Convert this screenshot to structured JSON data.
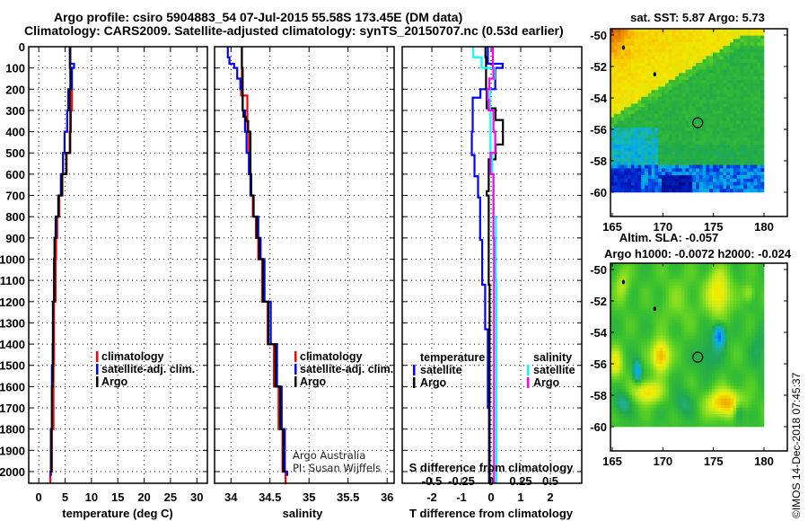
{
  "title": {
    "line1": "Argo profile: csiro 5904883_54 07-Jul-2015 55.58S 173.45E (DM data)",
    "line2": "Climatology: CARS2009. Satellite-adjusted climatology: synTS_20150707.nc (0.53d earlier)"
  },
  "depth_ticks": [
    0,
    100,
    200,
    300,
    400,
    500,
    600,
    700,
    800,
    900,
    1000,
    1100,
    1200,
    1300,
    1400,
    1500,
    1600,
    1700,
    1800,
    1900,
    2000
  ],
  "credit": {
    "line1": "Argo Australia",
    "line2": "PI: Susan Wijffels"
  },
  "timestamp": "©IMOS 14-Dec-2018 07:45:37",
  "chart_data": [
    {
      "type": "line",
      "xlabel": "temperature (deg C)",
      "ylabel": "depth",
      "xlim": [
        -1.9,
        32
      ],
      "ylim": [
        0,
        2055
      ],
      "y_reversed": true,
      "grid": true,
      "xticks": [
        0,
        5,
        10,
        15,
        20,
        25,
        30
      ],
      "legend": [
        "climatology",
        "satellite-adj. clim.",
        "Argo"
      ],
      "series": [
        {
          "name": "climatology",
          "color": "#ff0000",
          "depth": [
            0,
            100,
            200,
            300,
            400,
            500,
            600,
            700,
            800,
            900,
            1000,
            1200,
            1500,
            1800,
            2000,
            2055
          ],
          "values": [
            6.0,
            6.1,
            6.3,
            6.1,
            6.0,
            5.3,
            4.5,
            3.9,
            3.5,
            3.3,
            3.2,
            2.9,
            2.8,
            2.5,
            2.2,
            2.2
          ]
        },
        {
          "name": "satellite-adj. clim.",
          "color": "#0000ff",
          "depth": [
            0,
            80,
            100,
            200,
            300,
            400,
            500,
            600,
            700,
            800,
            900,
            1000,
            1200,
            1500,
            1800,
            2020
          ],
          "values": [
            6.0,
            6.7,
            6.3,
            5.6,
            5.4,
            4.9,
            4.6,
            4.2,
            3.7,
            3.3,
            3.0,
            2.9,
            2.7,
            2.5,
            2.3,
            2.3
          ]
        },
        {
          "name": "Argo",
          "color": "#000000",
          "depth": [
            0,
            100,
            200,
            300,
            400,
            500,
            600,
            700,
            800,
            900,
            1000,
            1200,
            1400,
            1600,
            1800,
            2000
          ],
          "values": [
            5.9,
            6.0,
            5.9,
            6.0,
            5.9,
            5.2,
            4.4,
            3.75,
            3.2,
            3.0,
            2.95,
            2.7,
            2.65,
            2.5,
            2.4,
            2.3
          ]
        }
      ]
    },
    {
      "type": "line",
      "xlabel": "salinity",
      "ylabel": "depth",
      "xlim": [
        33.79,
        36.09
      ],
      "ylim": [
        0,
        2055
      ],
      "y_reversed": true,
      "grid": true,
      "xticks": [
        34,
        34.5,
        35,
        35.5,
        36
      ],
      "legend": [
        "climatology",
        "satellite-adj. clim.",
        "Argo"
      ],
      "series": [
        {
          "name": "climatology",
          "color": "#ff0000",
          "depth": [
            0,
            150,
            230,
            300,
            400,
            500,
            600,
            700,
            800,
            900,
            1000,
            1200,
            1400,
            1600,
            1800,
            2000,
            2055
          ],
          "values": [
            34.14,
            34.13,
            34.21,
            34.21,
            34.23,
            34.24,
            34.25,
            34.28,
            34.32,
            34.35,
            34.4,
            34.47,
            34.55,
            34.61,
            34.66,
            34.7,
            34.71
          ]
        },
        {
          "name": "satellite-adj. clim.",
          "color": "#0000ff",
          "depth": [
            0,
            50,
            80,
            100,
            150,
            200,
            300,
            400,
            500,
            600,
            700,
            800,
            900,
            1000,
            1200,
            1400,
            1600,
            1800,
            2000,
            2020
          ],
          "values": [
            33.96,
            33.98,
            34.04,
            34.08,
            34.12,
            34.15,
            34.18,
            34.2,
            34.23,
            34.25,
            34.29,
            34.35,
            34.38,
            34.43,
            34.51,
            34.59,
            34.65,
            34.69,
            34.72,
            34.72
          ]
        },
        {
          "name": "Argo",
          "color": "#000000",
          "depth": [
            0,
            100,
            300,
            330,
            350,
            400,
            500,
            600,
            700,
            800,
            900,
            1000,
            1200,
            1400,
            1600,
            1800,
            2000
          ],
          "values": [
            34.14,
            34.15,
            34.16,
            34.19,
            34.22,
            34.25,
            34.25,
            34.26,
            34.29,
            34.33,
            34.36,
            34.41,
            34.48,
            34.57,
            34.63,
            34.67,
            34.7
          ]
        }
      ]
    },
    {
      "type": "line",
      "xlabel": "T difference from climatology",
      "x2label": "S difference from climatology",
      "xlim": [
        -3,
        3.06
      ],
      "x2lim": [
        -0.75,
        0.765
      ],
      "ylim": [
        0,
        2055
      ],
      "y_reversed": true,
      "grid": true,
      "xticks": [
        -2,
        -1,
        0,
        1,
        2
      ],
      "x2ticks": [
        -0.5,
        -0.25,
        0,
        0.25,
        0.5
      ],
      "x2ticklabels": [
        "-0.5",
        "-0.25",
        "0",
        "0.25",
        "0.5"
      ],
      "legend_groups": [
        {
          "header": "temperature",
          "items": [
            "satellite",
            "Argo"
          ]
        },
        {
          "header": "salinity",
          "items": [
            "satellite",
            "Argo"
          ]
        }
      ],
      "series": [
        {
          "name": "temperature satellite",
          "axis": "T",
          "color": "#0000ff",
          "depth": [
            0,
            80,
            100,
            200,
            240,
            400,
            510,
            610,
            710,
            910,
            1120,
            1330,
            1700,
            2050
          ],
          "values": [
            -0.11,
            0.39,
            0.14,
            -0.36,
            -0.62,
            -0.65,
            -0.56,
            -0.44,
            -0.37,
            -0.3,
            -0.2,
            -0.11,
            -0.07,
            -0.03
          ]
        },
        {
          "name": "temperature Argo",
          "axis": "T",
          "color": "#000000",
          "depth": [
            0,
            50,
            100,
            200,
            290,
            345,
            400,
            460,
            530,
            680,
            700,
            840,
            1120,
            2050
          ],
          "values": [
            -0.19,
            -0.17,
            -0.17,
            -0.15,
            0.15,
            0.4,
            0.4,
            0.15,
            -0.08,
            -0.15,
            -0.08,
            -0.08,
            -0.05,
            -0.02
          ]
        },
        {
          "name": "salinity satellite",
          "axis": "S",
          "color": "#00ffff",
          "depth": [
            0,
            50,
            100,
            150,
            200,
            300,
            400,
            500,
            600,
            800,
            1100,
            1500,
            2050
          ],
          "values": [
            -0.15,
            -0.08,
            0.03,
            -0.015,
            -0.01,
            -0.005,
            -0.005,
            0.01,
            0.02,
            0.04,
            0.045,
            0.045,
            0.04
          ]
        },
        {
          "name": "salinity Argo",
          "axis": "S",
          "color": "#ff00ff",
          "depth": [
            0,
            100,
            150,
            200,
            250,
            300,
            400,
            500,
            600,
            700,
            900,
            1200,
            2050
          ],
          "values": [
            0.015,
            0.02,
            -0.015,
            -0.03,
            -0.02,
            0.02,
            0.035,
            -0.005,
            0.02,
            0.02,
            0.025,
            0.025,
            0.035
          ]
        }
      ]
    },
    {
      "type": "heatmap",
      "title": "sat. SST: 5.87 Argo: 5.73",
      "lon_range": [
        165,
        180
      ],
      "lat_range": [
        -60,
        -49.6
      ],
      "xticks": [
        165,
        170,
        175,
        180
      ],
      "yticks": [
        -50,
        -52,
        -54,
        -56,
        -58,
        -60
      ],
      "float_position": {
        "lon": 173.45,
        "lat": -55.58
      }
    },
    {
      "type": "heatmap",
      "title_line1": "Altim. SLA: -0.057",
      "title_line2": "Argo h1000: -0.0072 h2000: -0.024",
      "lon_range": [
        165,
        180
      ],
      "lat_range": [
        -60,
        -49.6
      ],
      "xticks": [
        165,
        170,
        175,
        180
      ],
      "yticks": [
        -50,
        -52,
        -54,
        -56,
        -58,
        -60
      ],
      "float_position": {
        "lon": 173.45,
        "lat": -55.58
      }
    }
  ]
}
